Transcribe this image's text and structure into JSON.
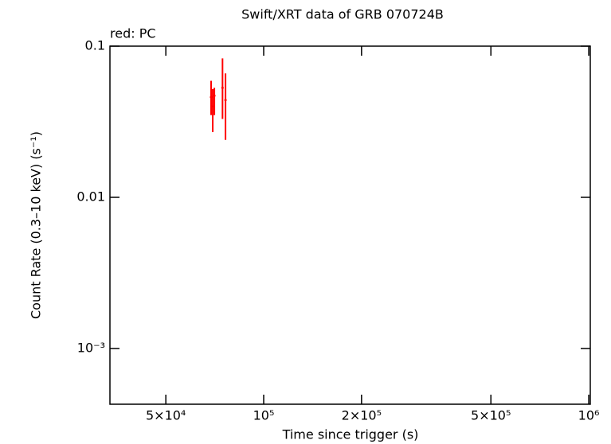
{
  "chart_data": {
    "type": "scatter",
    "title": "Swift/XRT data of GRB 070724B",
    "annotation": "red: PC",
    "x_label": "Time since trigger (s)",
    "y_label": "Count Rate (0.3–10 keV) (s⁻¹)",
    "xscale": "log",
    "yscale": "log",
    "xlim": [
      33650,
      1011000
    ],
    "ylim": [
      0.000428,
      0.1
    ],
    "xticks": [
      {
        "value": 50000,
        "label": "5×10⁴"
      },
      {
        "value": 100000,
        "label": "10⁵"
      },
      {
        "value": 200000,
        "label": "2×10⁵"
      },
      {
        "value": 500000,
        "label": "5×10⁵"
      },
      {
        "value": 1000000,
        "label": "10⁶"
      }
    ],
    "yticks": [
      0.1,
      0.01,
      {
        "value": 0.001,
        "label": "10⁻³"
      }
    ],
    "grid": false,
    "series": [
      {
        "name": "PC",
        "color": "#ff0000",
        "x": [
          68900,
          69700,
          70500,
          74700,
          76300
        ],
        "values": [
          0.046,
          0.04,
          0.047,
          0.053,
          0.044
        ],
        "yerr_plus": [
          0.013,
          0.012,
          0.006,
          0.03,
          0.022
        ],
        "yerr_minus": [
          0.011,
          0.013,
          0.012,
          0.02,
          0.02
        ]
      }
    ]
  }
}
